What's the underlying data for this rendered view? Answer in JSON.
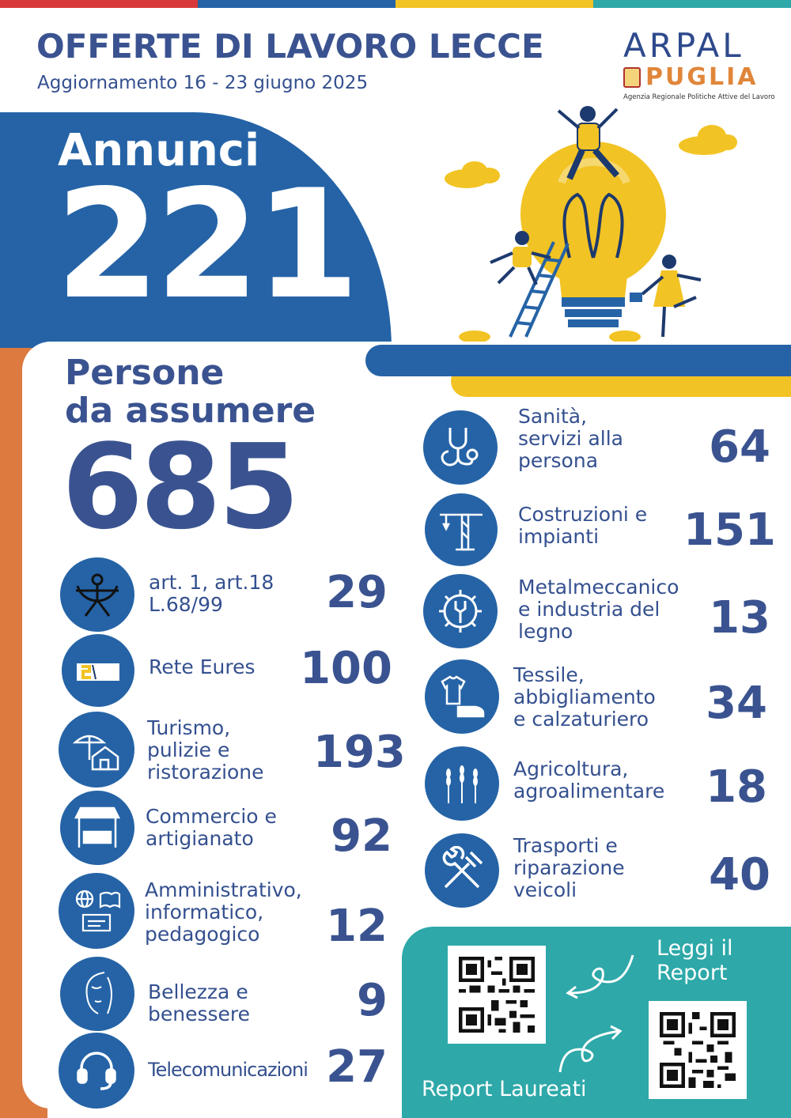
{
  "header": {
    "title": "OFFERTE DI LAVORO LECCE",
    "subtitle": "Aggiornamento 16 - 23 giugno 2025"
  },
  "logo": {
    "arpal": "ARPAL",
    "puglia": "PUGLIA",
    "agency": "Agenzia Regionale Politiche Attive del Lavoro"
  },
  "annunci": {
    "label": "Annunci",
    "value": "221"
  },
  "persone": {
    "label_line1": "Persone",
    "label_line2": "da assumere",
    "value": "685"
  },
  "left_categories": [
    {
      "label": [
        "art. 1, art.18",
        "L.68/99"
      ],
      "value": "29",
      "icon": "accessibility-icon"
    },
    {
      "label": [
        "Rete Eures"
      ],
      "value": "100",
      "icon": "eures-logo-icon"
    },
    {
      "label": [
        "Turismo,",
        "pulizie e",
        "ristorazione"
      ],
      "value": "193",
      "icon": "beach-house-icon"
    },
    {
      "label": [
        "Commercio e",
        "artigianato"
      ],
      "value": "92",
      "icon": "market-stall-icon"
    },
    {
      "label": [
        "Amministrativo,",
        "informatico,",
        "pedagogico"
      ],
      "value": "12",
      "icon": "globe-book-icon"
    },
    {
      "label": [
        "Bellezza e",
        "benessere"
      ],
      "value": "9",
      "icon": "face-icon"
    },
    {
      "label": [
        "Telecomunicazioni"
      ],
      "value": "27",
      "icon": "headset-icon"
    }
  ],
  "right_categories": [
    {
      "label": [
        "Sanità,",
        "servizi alla",
        "persona"
      ],
      "value": "64",
      "icon": "stethoscope-icon"
    },
    {
      "label": [
        "Costruzioni e",
        "impianti"
      ],
      "value": "151",
      "icon": "crane-icon"
    },
    {
      "label": [
        "Metalmeccanico",
        "e industria del",
        "legno"
      ],
      "value": "13",
      "icon": "gear-wrench-icon"
    },
    {
      "label": [
        "Tessile,",
        "abbigliamento",
        "e calzaturiero"
      ],
      "value": "34",
      "icon": "tshirt-shoe-icon"
    },
    {
      "label": [
        "Agricoltura,",
        "agroalimentare"
      ],
      "value": "18",
      "icon": "wheat-icon"
    },
    {
      "label": [
        "Trasporti e",
        "riparazione",
        "veicoli"
      ],
      "value": "40",
      "icon": "wrench-hammer-icon"
    }
  ],
  "reports": {
    "leggi_line1": "Leggi il",
    "leggi_line2": "Report",
    "laureati": "Report Laureati"
  },
  "colors": {
    "blue": "#2563a6",
    "navy_text": "#3a5390",
    "orange": "#dc7a40",
    "yellow": "#f2c324",
    "teal": "#2ea8a9",
    "topbar": [
      "#d8383a",
      "#2563a6",
      "#f2c324",
      "#2ea8a9"
    ]
  }
}
